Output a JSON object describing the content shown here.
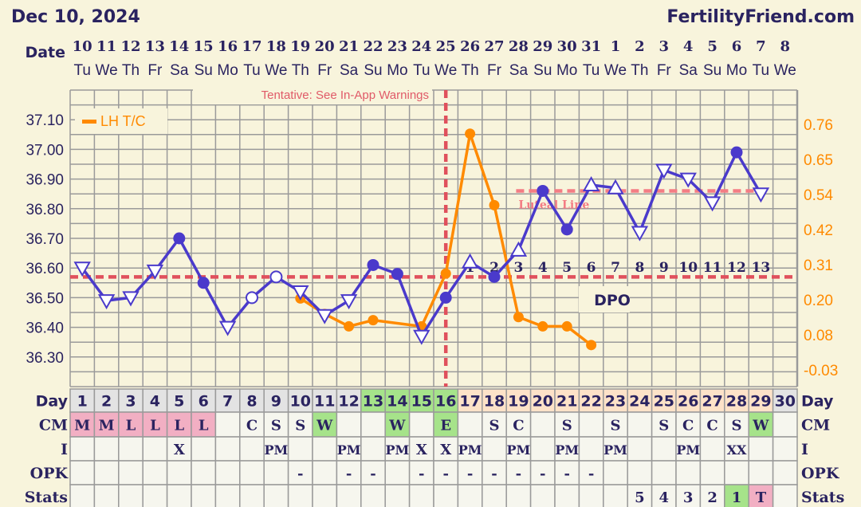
{
  "header": {
    "date": "Dec 10, 2024",
    "site": "FertilityFriend.com"
  },
  "date_row": {
    "label": "Date",
    "dates": [
      "10",
      "11",
      "12",
      "13",
      "14",
      "15",
      "16",
      "17",
      "18",
      "19",
      "20",
      "21",
      "22",
      "23",
      "24",
      "25",
      "26",
      "27",
      "28",
      "29",
      "30",
      "31",
      "1",
      "2",
      "3",
      "4",
      "5",
      "6",
      "7",
      "8"
    ],
    "weekdays": [
      "Tu",
      "We",
      "Th",
      "Fr",
      "Sa",
      "Su",
      "Mo",
      "Tu",
      "We",
      "Th",
      "Fr",
      "Sa",
      "Su",
      "Mo",
      "Tu",
      "We",
      "Th",
      "Fr",
      "Sa",
      "Su",
      "Mo",
      "Tu",
      "We",
      "Th",
      "Fr",
      "Sa",
      "Su",
      "Mo",
      "Tu",
      "We"
    ]
  },
  "colors": {
    "temp": "#4a3acb",
    "lh": "#ff8a00",
    "coverline": "#e0505c",
    "luteal": "#f47c84",
    "gray": "#e3e3e3",
    "green": "#a6e38a",
    "peach": "#fde2c8",
    "pink": "#f2afc3",
    "cell": "#f6f6ee"
  },
  "chart_data": {
    "type": "line",
    "x": [
      1,
      2,
      3,
      4,
      5,
      6,
      7,
      8,
      9,
      10,
      11,
      12,
      13,
      14,
      15,
      16,
      17,
      18,
      19,
      20,
      21,
      22,
      23,
      24,
      25,
      26,
      27,
      28,
      29
    ],
    "series": [
      {
        "name": "Temperature",
        "values": [
          36.6,
          36.49,
          36.5,
          36.59,
          36.7,
          36.55,
          36.4,
          36.5,
          36.57,
          36.52,
          36.44,
          36.49,
          36.61,
          36.58,
          36.37,
          36.5,
          36.62,
          36.57,
          36.66,
          36.86,
          36.73,
          36.88,
          36.87,
          36.72,
          36.93,
          36.9,
          36.82,
          36.99,
          36.85
        ],
        "markers": [
          "down",
          "down",
          "down",
          "down",
          "filled",
          "filled",
          "down",
          "open",
          "open",
          "down",
          "down",
          "down",
          "filled",
          "filled",
          "down",
          "filled",
          "up",
          "filled",
          "up",
          "filled",
          "filled",
          "up",
          "up",
          "down",
          "down",
          "down",
          "down",
          "filled",
          "down"
        ]
      },
      {
        "name": "LH T/C",
        "x": [
          10,
          11,
          12,
          13,
          15,
          16,
          17,
          18,
          19,
          20,
          21,
          22
        ],
        "values": [
          0.2,
          0.15,
          0.11,
          0.13,
          0.11,
          0.28,
          0.73,
          0.5,
          0.14,
          0.11,
          0.11,
          0.05
        ]
      }
    ],
    "y_left": {
      "range": [
        36.2,
        37.2
      ],
      "ticks": [
        "37.10",
        "37.00",
        "36.90",
        "36.80",
        "36.70",
        "36.60",
        "36.50",
        "36.40",
        "36.30"
      ]
    },
    "y_right": {
      "ticks": [
        "0.76",
        "0.65",
        "0.54",
        "0.42",
        "0.31",
        "0.20",
        "0.08",
        "-0.03"
      ],
      "range": [
        -0.03,
        0.76
      ]
    },
    "coverline": 36.57,
    "ovulation_day": 16,
    "luteal_line": {
      "value": 36.86,
      "from_day": 19,
      "to_day": 29,
      "label": "Luteal Line"
    },
    "dpo": {
      "label": "DPO",
      "start_day": 17,
      "values": [
        "1",
        "2",
        "3",
        "4",
        "5",
        "6",
        "7",
        "8",
        "9",
        "10",
        "11",
        "12",
        "13"
      ]
    },
    "legend": {
      "label": "LH T/C",
      "placement": "top-left"
    },
    "annotation": "Tentative: See In-App Warnings",
    "grid": true
  },
  "table": {
    "labels": [
      "Day",
      "CM",
      "I",
      "OPK",
      "Stats"
    ],
    "days": [
      "1",
      "2",
      "3",
      "4",
      "5",
      "6",
      "7",
      "8",
      "9",
      "10",
      "11",
      "12",
      "13",
      "14",
      "15",
      "16",
      "17",
      "18",
      "19",
      "20",
      "21",
      "22",
      "23",
      "24",
      "25",
      "26",
      "27",
      "28",
      "29",
      "30"
    ],
    "day_colors": [
      "gray",
      "gray",
      "gray",
      "gray",
      "gray",
      "gray",
      "gray",
      "gray",
      "gray",
      "gray",
      "gray",
      "gray",
      "green",
      "green",
      "green",
      "green",
      "peach",
      "peach",
      "peach",
      "peach",
      "peach",
      "peach",
      "peach",
      "peach",
      "peach",
      "peach",
      "peach",
      "peach",
      "peach",
      "gray"
    ],
    "cm": [
      "M",
      "M",
      "L",
      "L",
      "L",
      "L",
      "",
      "C",
      "S",
      "S",
      "W",
      "",
      "",
      "W",
      "",
      "E",
      "",
      "S",
      "C",
      "",
      "S",
      "",
      "S",
      "",
      "S",
      "C",
      "C",
      "S",
      "W",
      ""
    ],
    "cm_colors": [
      "pink",
      "pink",
      "pink",
      "pink",
      "pink",
      "pink",
      "",
      "",
      "",
      "",
      "green",
      "",
      "",
      "green",
      "",
      "green",
      "",
      "",
      "",
      "",
      "",
      "",
      "",
      "",
      "",
      "",
      "",
      "",
      "green",
      ""
    ],
    "i": [
      "",
      "",
      "",
      "",
      "X",
      "",
      "",
      "",
      "PM",
      "",
      "",
      "PM",
      "",
      "PM",
      "X",
      "X",
      "PM",
      "",
      "PM",
      "",
      "PM",
      "",
      "PM",
      "",
      "",
      "PM",
      "",
      "XX",
      "",
      ""
    ],
    "opk": [
      "",
      "",
      "",
      "",
      "",
      "",
      "",
      "",
      "",
      "-",
      "",
      "-",
      "-",
      "",
      "-",
      "-",
      "-",
      "-",
      "-",
      "-",
      "-",
      "-",
      "",
      "",
      "",
      "",
      "",
      "",
      "",
      ""
    ],
    "stats": [
      "",
      "",
      "",
      "",
      "",
      "",
      "",
      "",
      "",
      "",
      "",
      "",
      "",
      "",
      "",
      "",
      "",
      "",
      "",
      "",
      "",
      "",
      "",
      "5",
      "4",
      "3",
      "2",
      "1",
      "T",
      ""
    ],
    "stats_colors": [
      "",
      "",
      "",
      "",
      "",
      "",
      "",
      "",
      "",
      "",
      "",
      "",
      "",
      "",
      "",
      "",
      "",
      "",
      "",
      "",
      "",
      "",
      "",
      "",
      "",
      "",
      "",
      "green",
      "pink",
      ""
    ]
  }
}
